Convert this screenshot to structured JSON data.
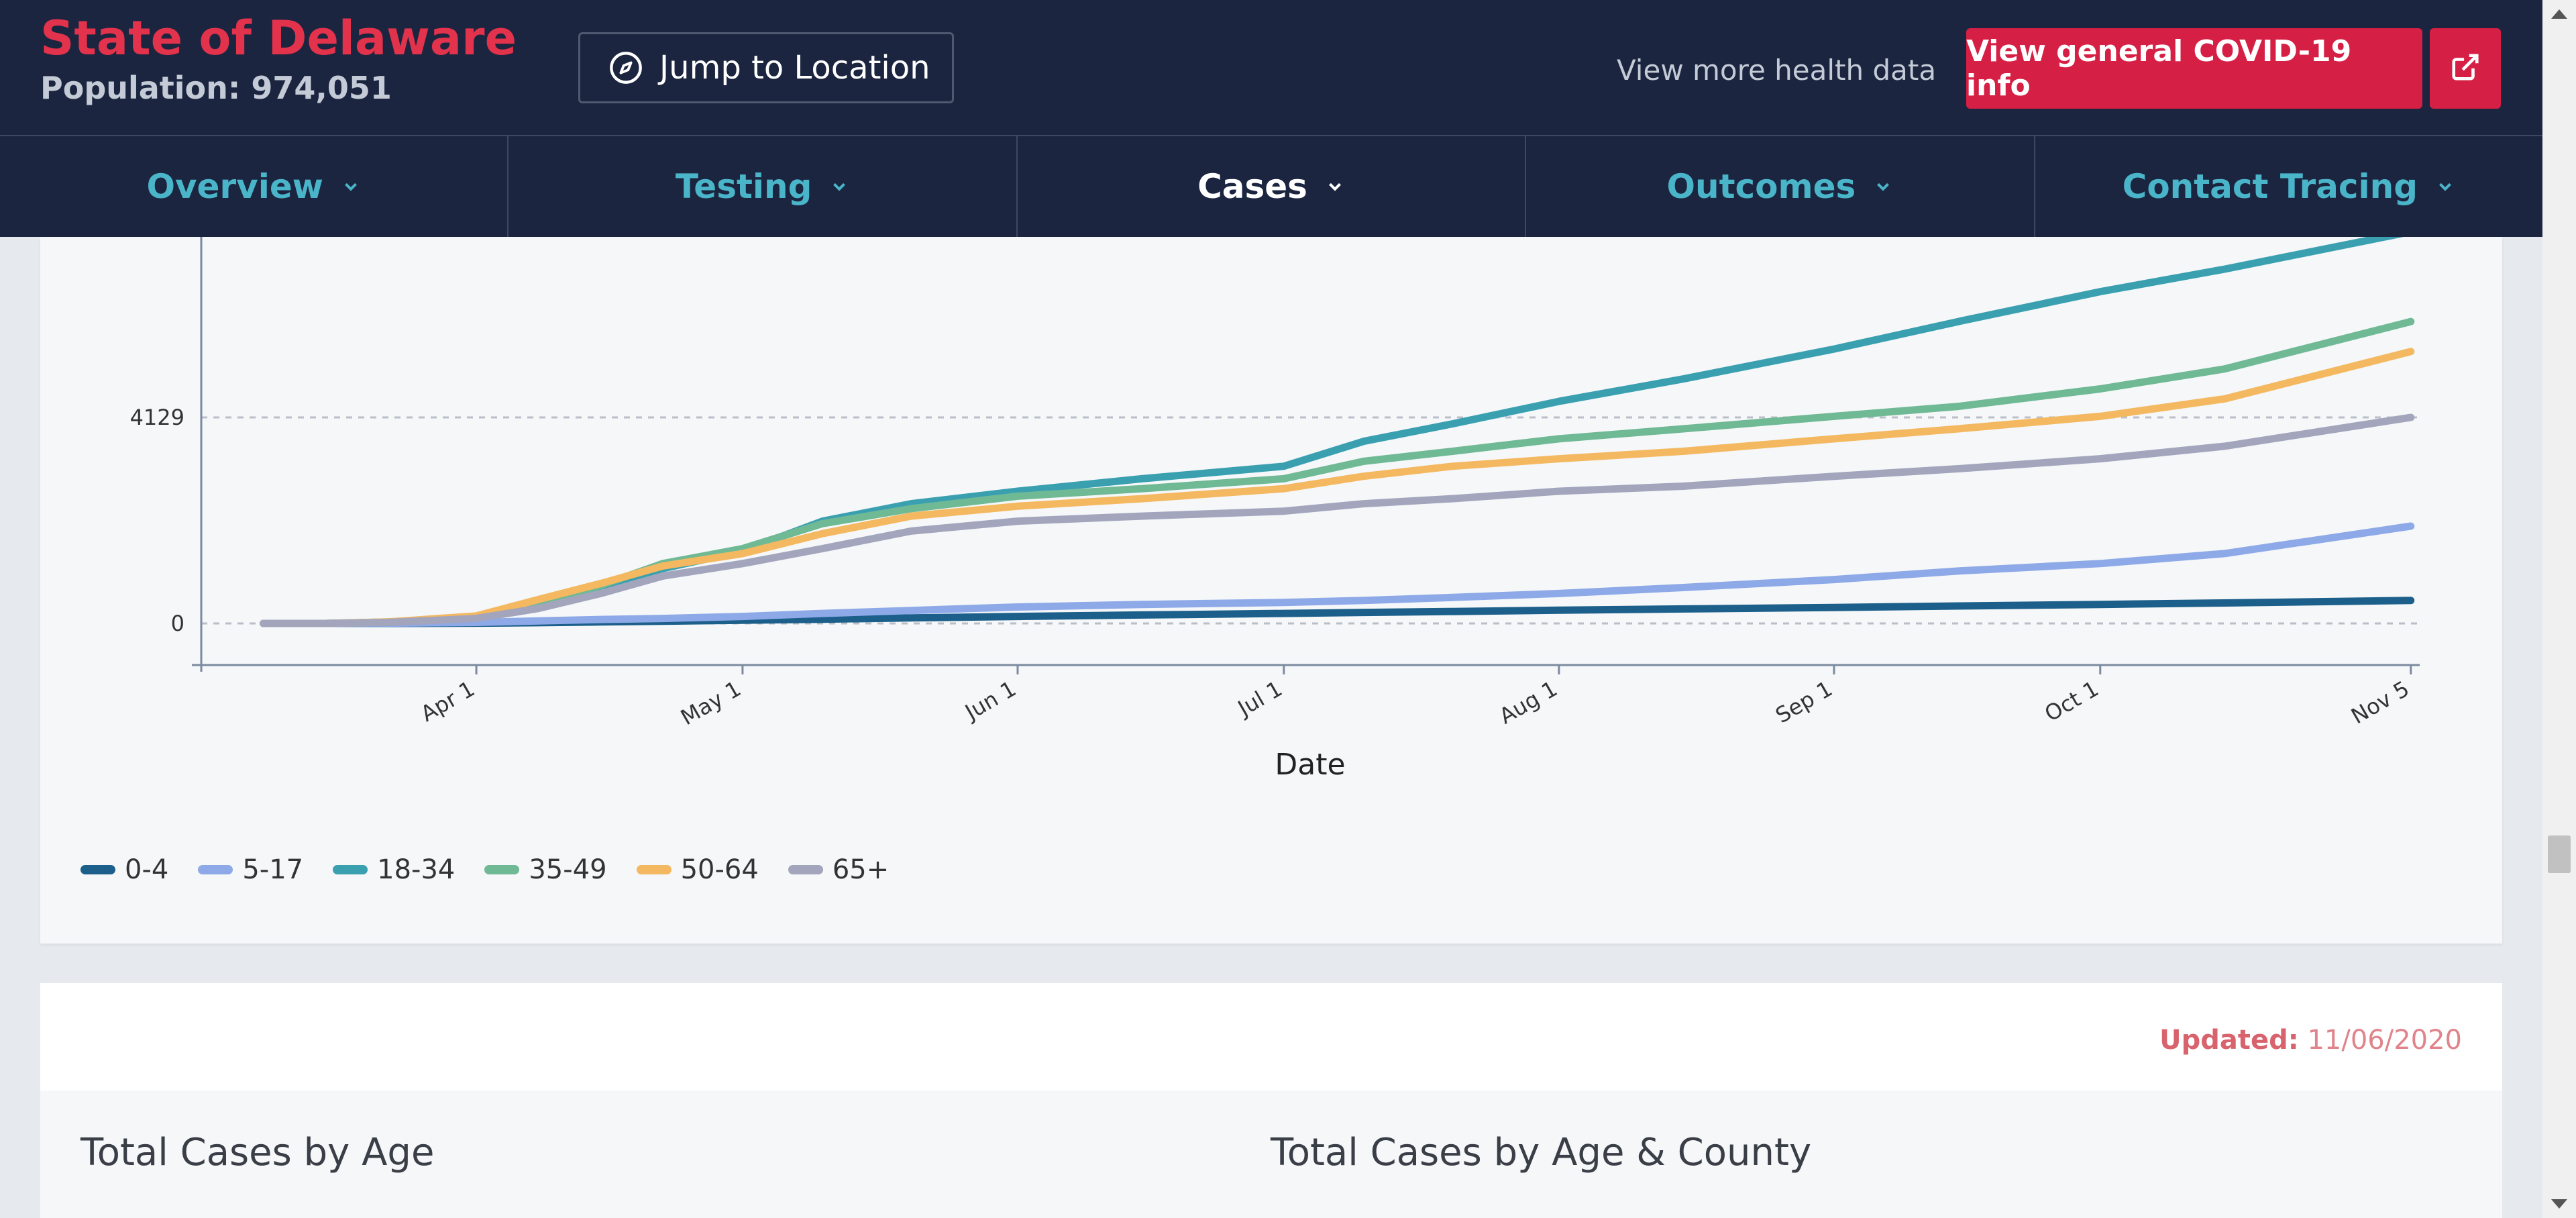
{
  "header": {
    "title": "State of Delaware",
    "population": "Population: 974,051",
    "jump_label": "Jump to Location",
    "more_link": "View more health data",
    "covid_button": "View general COVID-19 info"
  },
  "nav": {
    "items": [
      {
        "label": "Overview",
        "active": false
      },
      {
        "label": "Testing",
        "active": false
      },
      {
        "label": "Cases",
        "active": true
      },
      {
        "label": "Outcomes",
        "active": false
      },
      {
        "label": "Contact Tracing",
        "active": false
      }
    ]
  },
  "chart_data": {
    "type": "line",
    "xlabel": "Date",
    "ylabel": "",
    "x_ticks": [
      "Apr 1",
      "May 1",
      "Jun 1",
      "Jul 1",
      "Aug 1",
      "Sep 1",
      "Oct 1",
      "Nov 5"
    ],
    "y_ticks": [
      "0",
      "4129"
    ],
    "ylim": [
      -780,
      7100
    ],
    "x": [
      "2020-03-08",
      "2020-03-15",
      "2020-03-22",
      "2020-04-01",
      "2020-04-08",
      "2020-04-15",
      "2020-04-22",
      "2020-05-01",
      "2020-05-10",
      "2020-05-20",
      "2020-06-01",
      "2020-06-15",
      "2020-07-01",
      "2020-07-10",
      "2020-07-20",
      "2020-08-01",
      "2020-08-15",
      "2020-09-01",
      "2020-09-15",
      "2020-10-01",
      "2020-10-15",
      "2020-11-05"
    ],
    "series": [
      {
        "name": "0-4",
        "color": "#1b5f8a",
        "values": [
          0,
          0,
          0,
          5,
          15,
          30,
          45,
          65,
          85,
          110,
          140,
          170,
          200,
          220,
          240,
          265,
          290,
          320,
          350,
          380,
          410,
          460
        ]
      },
      {
        "name": "5-17",
        "color": "#8ea9e8",
        "values": [
          0,
          0,
          5,
          20,
          50,
          80,
          100,
          140,
          200,
          260,
          330,
          380,
          420,
          460,
          520,
          600,
          720,
          880,
          1050,
          1200,
          1400,
          1950
        ]
      },
      {
        "name": "18-34",
        "color": "#3aa0b0",
        "values": [
          0,
          0,
          20,
          110,
          350,
          700,
          1100,
          1450,
          2050,
          2400,
          2650,
          2900,
          3150,
          3650,
          4000,
          4450,
          4900,
          5500,
          6050,
          6650,
          7100,
          7850
        ]
      },
      {
        "name": "35-49",
        "color": "#6fb995",
        "values": [
          0,
          0,
          30,
          130,
          420,
          760,
          1200,
          1500,
          2000,
          2300,
          2550,
          2700,
          2900,
          3250,
          3450,
          3700,
          3900,
          4150,
          4350,
          4700,
          5100,
          6050
        ]
      },
      {
        "name": "50-64",
        "color": "#f4b860",
        "values": [
          0,
          0,
          30,
          150,
          480,
          800,
          1150,
          1400,
          1800,
          2150,
          2350,
          2500,
          2700,
          2950,
          3150,
          3300,
          3450,
          3700,
          3900,
          4150,
          4500,
          5450
        ]
      },
      {
        "name": "65+",
        "color": "#a3a5bd",
        "values": [
          0,
          0,
          20,
          100,
          300,
          600,
          950,
          1200,
          1500,
          1850,
          2050,
          2150,
          2250,
          2400,
          2500,
          2650,
          2750,
          2950,
          3100,
          3300,
          3550,
          4129
        ]
      }
    ]
  },
  "bottom": {
    "updated_label": "Updated:",
    "updated_date": "11/06/2020",
    "left_title": "Total Cases by Age",
    "right_title": "Total Cases by Age & County"
  }
}
